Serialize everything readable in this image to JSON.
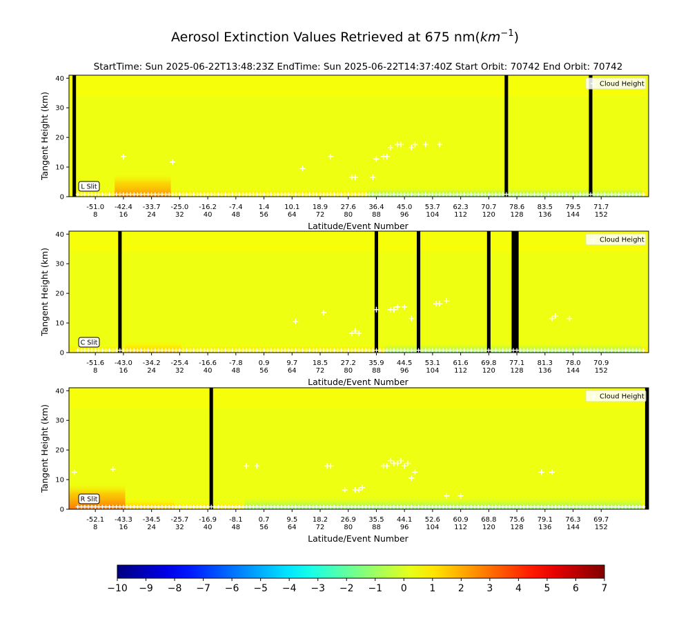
{
  "figure": {
    "title": "Aerosol Extinction Values Retrieved at 675 nm(",
    "title_unit": "km",
    "title_unit_exp": "−1",
    "title_close": ")",
    "subtitle": "StartTime: Sun 2025-06-22T13:48:23Z  EndTime: Sun 2025-06-22T14:37:40Z  Start Orbit: 70742 End Orbit: 70742"
  },
  "chart_data": [
    {
      "type": "heatmap",
      "slit_label": "L Slit",
      "ylabel": "Tangent Height (km)",
      "xlabel": "Latitude/Event Number",
      "legend": "Cloud Height",
      "legend_position": "top-right",
      "yticks": [
        0,
        10,
        20,
        30,
        40
      ],
      "ylim": [
        0,
        41
      ],
      "xlim": [
        0,
        165
      ],
      "event_ticks": [
        8,
        16,
        24,
        32,
        40,
        48,
        56,
        64,
        72,
        80,
        88,
        96,
        104,
        112,
        120,
        128,
        136,
        144,
        152
      ],
      "latitude_ticks": [
        "-51.0",
        "-42.4",
        "-33.7",
        "-25.0",
        "-16.2",
        "-7.4",
        "1.4",
        "10.1",
        "18.9",
        "27.6",
        "36.4",
        "45.0",
        "53.7",
        "62.3",
        "70.7",
        "78.6",
        "83.5",
        "79.5",
        "71.7"
      ],
      "missing_events": [
        [
          1,
          2
        ],
        [
          124,
          125
        ],
        [
          148,
          149
        ]
      ],
      "warm_regions": [
        {
          "x": [
            13,
            29
          ],
          "ymax": 8,
          "value": 2.5
        }
      ],
      "cool_regions": [
        {
          "x": [
            85,
            163
          ],
          "ymax": 3,
          "value": -1.5
        }
      ],
      "cloud_heights": [
        [
          15,
          13.5
        ],
        [
          29,
          11.7
        ],
        [
          66,
          9.5
        ],
        [
          74,
          13.5
        ],
        [
          80,
          6.5
        ],
        [
          81,
          6.5
        ],
        [
          86,
          6.5
        ],
        [
          87,
          12.7
        ],
        [
          89,
          13.5
        ],
        [
          90,
          13.5
        ],
        [
          91,
          16.6
        ],
        [
          93,
          17.6
        ],
        [
          94,
          17.6
        ],
        [
          97,
          16.6
        ],
        [
          98,
          17.6
        ],
        [
          101,
          17.6
        ],
        [
          105,
          17.6
        ]
      ]
    },
    {
      "type": "heatmap",
      "slit_label": "C Slit",
      "ylabel": "Tangent Height (km)",
      "xlabel": "Latitude/Event Number",
      "legend": "Cloud Height",
      "legend_position": "top-right",
      "yticks": [
        0,
        10,
        20,
        30,
        40
      ],
      "ylim": [
        0,
        41
      ],
      "xlim": [
        0,
        165
      ],
      "event_ticks": [
        8,
        16,
        24,
        32,
        40,
        48,
        56,
        64,
        72,
        80,
        88,
        96,
        104,
        112,
        120,
        128,
        136,
        144,
        152
      ],
      "latitude_ticks": [
        "-51.6",
        "-43.0",
        "-34.2",
        "-25.4",
        "-16.6",
        "-7.8",
        "0.9",
        "9.7",
        "18.5",
        "27.2",
        "35.9",
        "44.5",
        "53.1",
        "61.6",
        "69.8",
        "77.1",
        "81.3",
        "78.0",
        "70.9"
      ],
      "missing_events": [
        [
          14,
          15
        ],
        [
          87,
          88
        ],
        [
          99,
          100
        ],
        [
          119,
          120
        ],
        [
          126,
          128
        ]
      ],
      "warm_regions": [
        {
          "x": [
            16,
            32
          ],
          "ymax": 4,
          "value": 1.5
        }
      ],
      "cool_regions": [
        {
          "x": [
            90,
            163
          ],
          "ymax": 3,
          "value": -1.5
        }
      ],
      "cloud_heights": [
        [
          64,
          10.5
        ],
        [
          72,
          13.5
        ],
        [
          80,
          6.5
        ],
        [
          81,
          7.3
        ],
        [
          82,
          6.5
        ],
        [
          87,
          14.5
        ],
        [
          91,
          14.5
        ],
        [
          92,
          14.5
        ],
        [
          93,
          15.4
        ],
        [
          95,
          15.4
        ],
        [
          97,
          11.5
        ],
        [
          104,
          16.5
        ],
        [
          105,
          16.5
        ],
        [
          107,
          17.5
        ],
        [
          137,
          11.5
        ],
        [
          138,
          12.4
        ],
        [
          142,
          11.5
        ]
      ]
    },
    {
      "type": "heatmap",
      "slit_label": "R Slit",
      "ylabel": "Tangent Height (km)",
      "xlabel": "Latitude/Event Number",
      "legend": "Cloud Height",
      "legend_position": "top-right",
      "yticks": [
        0,
        10,
        20,
        30,
        40
      ],
      "ylim": [
        0,
        41
      ],
      "xlim": [
        0,
        165
      ],
      "event_ticks": [
        8,
        16,
        24,
        32,
        40,
        48,
        56,
        64,
        72,
        80,
        88,
        96,
        104,
        112,
        120,
        128,
        136,
        144,
        152
      ],
      "latitude_ticks": [
        "-52.1",
        "-43.3",
        "-34.5",
        "-25.7",
        "-16.9",
        "-8.1",
        "0.7",
        "9.5",
        "18.2",
        "26.9",
        "35.5",
        "44.1",
        "52.6",
        "60.9",
        "68.8",
        "75.6",
        "79.1",
        "76.3",
        "69.7"
      ],
      "missing_events": [
        [
          40,
          41
        ],
        [
          164,
          165
        ]
      ],
      "warm_regions": [
        {
          "x": [
            0,
            16
          ],
          "ymax": 9,
          "value": 3
        },
        {
          "x": [
            16,
            30
          ],
          "ymax": 4,
          "value": 1.5
        }
      ],
      "cool_regions": [
        {
          "x": [
            50,
            163
          ],
          "ymax": 4,
          "value": -1.5
        }
      ],
      "cloud_heights": [
        [
          1,
          12.5
        ],
        [
          12,
          13.5
        ],
        [
          50,
          14.6
        ],
        [
          53,
          14.6
        ],
        [
          73,
          14.6
        ],
        [
          74,
          14.6
        ],
        [
          78,
          6.5
        ],
        [
          81,
          6.5
        ],
        [
          82,
          6.5
        ],
        [
          83,
          7.3
        ],
        [
          89,
          14.6
        ],
        [
          90,
          14.6
        ],
        [
          91,
          16.4
        ],
        [
          92,
          15.5
        ],
        [
          93,
          15.5
        ],
        [
          94,
          16.4
        ],
        [
          95,
          14.6
        ],
        [
          96,
          15.5
        ],
        [
          97,
          10.5
        ],
        [
          98,
          12.5
        ],
        [
          107,
          4.5
        ],
        [
          111,
          4.5
        ],
        [
          134,
          12.5
        ],
        [
          137,
          12.5
        ]
      ]
    }
  ],
  "colorbar": {
    "colormap": "jet",
    "range": [
      -10,
      7
    ],
    "ticks": [
      "−10",
      "−9",
      "−8",
      "−7",
      "−6",
      "−5",
      "−4",
      "−3",
      "−2",
      "−1",
      "0",
      "1",
      "2",
      "3",
      "4",
      "5",
      "6",
      "7"
    ]
  }
}
